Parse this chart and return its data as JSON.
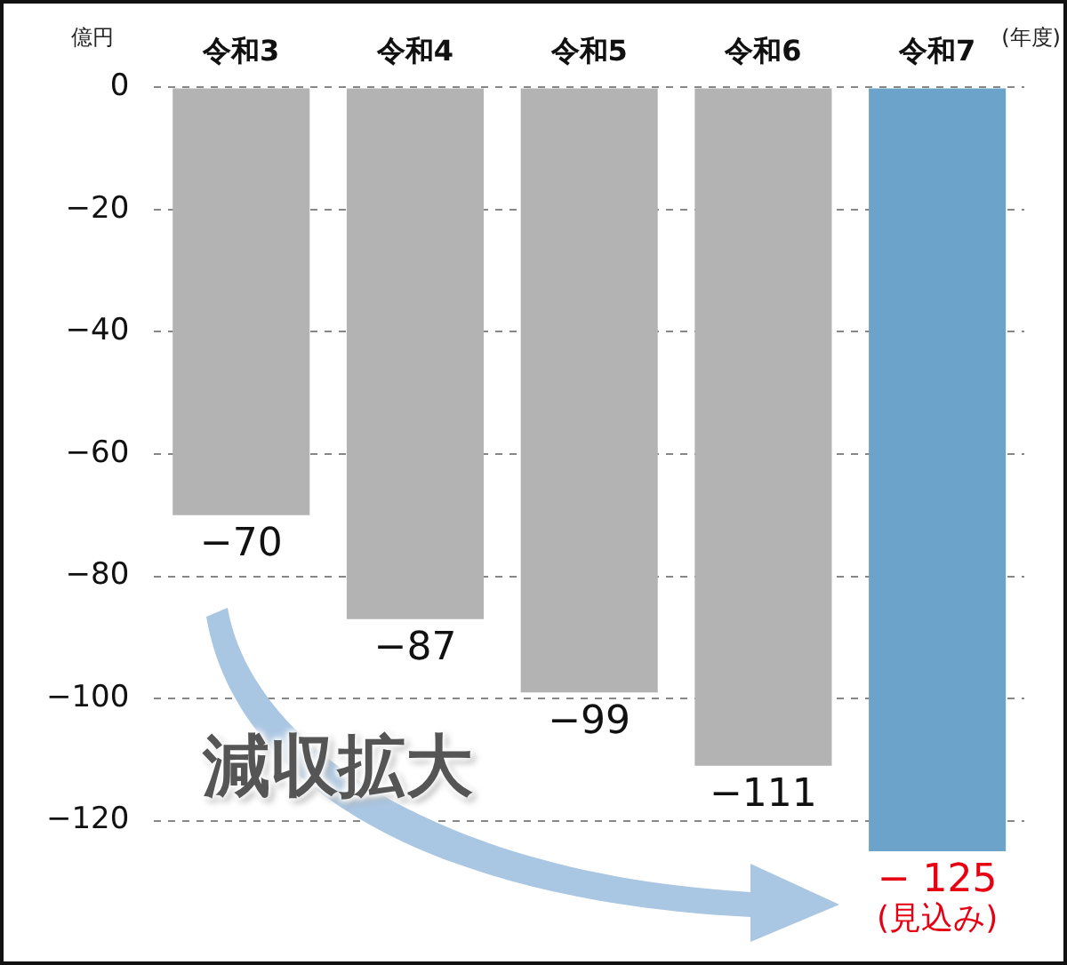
{
  "chart_data": {
    "type": "bar",
    "categories": [
      "令和3",
      "令和4",
      "令和5",
      "令和6",
      "令和7"
    ],
    "values": [
      -70,
      -87,
      -99,
      -111,
      -125
    ],
    "colors": [
      "#b3b3b4",
      "#b3b3b4",
      "#b3b3b4",
      "#b3b3b4",
      "#6ba3cb"
    ],
    "value_labels": [
      "−70",
      "−87",
      "−99",
      "−111",
      "− 125\n(見込み)"
    ],
    "ylabel": "億円",
    "xlabel": "(年度)",
    "yticks": [
      0,
      {
        "value": -20,
        "label": "−20"
      },
      {
        "value": -40,
        "label": "−40"
      },
      {
        "value": -60,
        "label": "−60"
      },
      {
        "value": -80,
        "label": "−80"
      },
      {
        "value": -100,
        "label": "−100"
      },
      {
        "value": -120,
        "label": "−120"
      }
    ],
    "ylim": [
      -125,
      0
    ],
    "grid": "y",
    "legend": false,
    "annotations": [
      "減収拡大"
    ]
  }
}
